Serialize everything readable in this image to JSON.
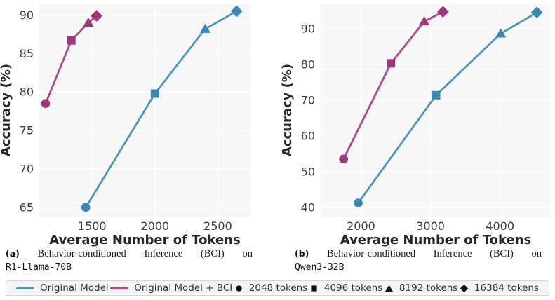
{
  "figure": {
    "captions": [
      {
        "tag": "(a)",
        "words": [
          "Behavior-conditioned",
          "Inference",
          "(BCI)",
          "on"
        ],
        "model": "R1-Llama-70B"
      },
      {
        "tag": "(b)",
        "words": [
          "Behavior-conditioned",
          "Inference",
          "(BCI)",
          "on"
        ],
        "model": "Qwen3-32B"
      }
    ],
    "legend": {
      "series": [
        {
          "label": "Original Model",
          "color": "#4f96ba"
        },
        {
          "label": "Original Model + BCI",
          "color": "#b04a85"
        }
      ],
      "markers": [
        {
          "shape": "circle",
          "label": "2048 tokens"
        },
        {
          "shape": "square",
          "label": "4096 tokens"
        },
        {
          "shape": "triangle",
          "label": "8192 tokens"
        },
        {
          "shape": "diamond",
          "label": "16384 tokens"
        }
      ],
      "marker_color": "#111111"
    },
    "colors": {
      "plot_bg": "#f7f7f8",
      "grid": "#ffffff",
      "tick_text": "#3d3d3d",
      "axis_label_text": "#262626",
      "blue_line": "#4f96ba",
      "blue_marker": "#3a89b4",
      "pink_line": "#b04a85",
      "pink_marker": "#a1377a"
    }
  },
  "chart_data": [
    {
      "type": "line",
      "title": "(a) Behavior-conditioned Inference (BCI) on R1-Llama-70B",
      "xlabel": "Average Number of Tokens",
      "ylabel": "Accuracy (%)",
      "xlim": [
        1080,
        2760
      ],
      "ylim": [
        63.8,
        91.5
      ],
      "xticks": [
        1500,
        2000,
        2500
      ],
      "yticks": [
        65,
        70,
        75,
        80,
        85,
        90
      ],
      "grid": true,
      "marker_meaning": [
        "2048 tokens",
        "4096 tokens",
        "8192 tokens",
        "16384 tokens"
      ],
      "series": [
        {
          "name": "Original Model",
          "line_color": "#4f96ba",
          "marker_color": "#3a89b4",
          "points": [
            [
              1450,
              65.0
            ],
            [
              2000,
              79.8
            ],
            [
              2400,
              88.2
            ],
            [
              2650,
              90.5
            ]
          ]
        },
        {
          "name": "Original Model + BCI",
          "line_color": "#b04a85",
          "marker_color": "#a1377a",
          "points": [
            [
              1130,
              78.5
            ],
            [
              1335,
              86.7
            ],
            [
              1470,
              89.0
            ],
            [
              1535,
              89.9
            ]
          ]
        }
      ]
    },
    {
      "type": "line",
      "title": "(b) Behavior-conditioned Inference (BCI) on Qwen3-32B",
      "xlabel": "Average Number of Tokens",
      "ylabel": "Accuracy (%)",
      "xlim": [
        1420,
        4730
      ],
      "ylim": [
        37.5,
        97.0
      ],
      "xticks": [
        2000,
        3000,
        4000
      ],
      "yticks": [
        40,
        50,
        60,
        70,
        80,
        90
      ],
      "grid": true,
      "marker_meaning": [
        "2048 tokens",
        "4096 tokens",
        "8192 tokens",
        "16384 tokens"
      ],
      "series": [
        {
          "name": "Original Model",
          "line_color": "#4f96ba",
          "marker_color": "#3a89b4",
          "points": [
            [
              1960,
              41.3
            ],
            [
              3080,
              71.4
            ],
            [
              4010,
              88.6
            ],
            [
              4530,
              94.5
            ]
          ]
        },
        {
          "name": "Original Model + BCI",
          "line_color": "#b04a85",
          "marker_color": "#a1377a",
          "points": [
            [
              1750,
              53.6
            ],
            [
              2430,
              80.3
            ],
            [
              2910,
              92.0
            ],
            [
              3180,
              94.7
            ]
          ]
        }
      ]
    }
  ]
}
